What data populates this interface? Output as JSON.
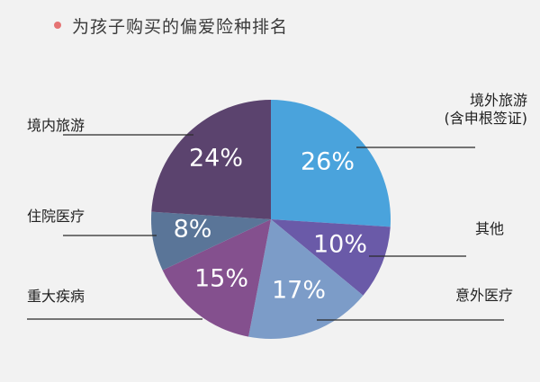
{
  "chart_data": {
    "type": "pie",
    "title": "为孩子购买的偏爱险种排名",
    "title_bullet_color": "#e57373",
    "slices": [
      {
        "label": "境外旅游 (含申根签证)",
        "label_lines": [
          "境外旅游",
          "(含申根签证)"
        ],
        "value": 26,
        "display": "26%",
        "color": "#4aa3dc"
      },
      {
        "label": "其他",
        "label_lines": [
          "其他"
        ],
        "value": 10,
        "display": "10%",
        "color": "#6a5aa8"
      },
      {
        "label": "意外医疗",
        "label_lines": [
          "意外医疗"
        ],
        "value": 17,
        "display": "17%",
        "color": "#7c9cc8"
      },
      {
        "label": "重大疾病",
        "label_lines": [
          "重大疾病"
        ],
        "value": 15,
        "display": "15%",
        "color": "#84508e"
      },
      {
        "label": "住院医疗",
        "label_lines": [
          "住院医疗"
        ],
        "value": 8,
        "display": "8%",
        "color": "#5a7598"
      },
      {
        "label": "境内旅游",
        "label_lines": [
          "境内旅游"
        ],
        "value": 24,
        "display": "24%",
        "color": "#5b436e"
      }
    ]
  }
}
